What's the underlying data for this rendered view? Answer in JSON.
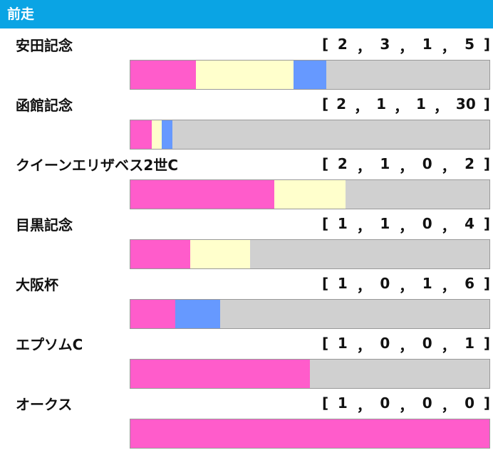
{
  "header": {
    "title": "前走"
  },
  "colors": {
    "header_bg": "#0aa4e4",
    "first": "#ff5ccb",
    "second": "#ffffcc",
    "third": "#6699ff",
    "other": "#d0d0d0"
  },
  "chart_data": {
    "type": "bar",
    "orientation": "horizontal-stacked",
    "title": "前走",
    "categories": [
      "安田記念",
      "函館記念",
      "クイーンエリザベス2世C",
      "目黒記念",
      "大阪杯",
      "エプソムC",
      "オークス"
    ],
    "series": [
      {
        "values": [
          2,
          2,
          2,
          1,
          1,
          1,
          1
        ]
      },
      {
        "values": [
          3,
          1,
          1,
          1,
          0,
          0,
          0
        ]
      },
      {
        "values": [
          1,
          1,
          0,
          0,
          1,
          0,
          0
        ]
      },
      {
        "values": [
          5,
          30,
          2,
          4,
          6,
          1,
          0
        ]
      }
    ],
    "records": [
      [
        2,
        3,
        1,
        5
      ],
      [
        2,
        1,
        1,
        30
      ],
      [
        2,
        1,
        0,
        2
      ],
      [
        1,
        1,
        0,
        4
      ],
      [
        1,
        0,
        1,
        6
      ],
      [
        1,
        0,
        0,
        1
      ],
      [
        1,
        0,
        0,
        0
      ]
    ],
    "record_open": "[",
    "record_close": "]",
    "record_separator": "，",
    "grid": false,
    "legend": "none"
  }
}
